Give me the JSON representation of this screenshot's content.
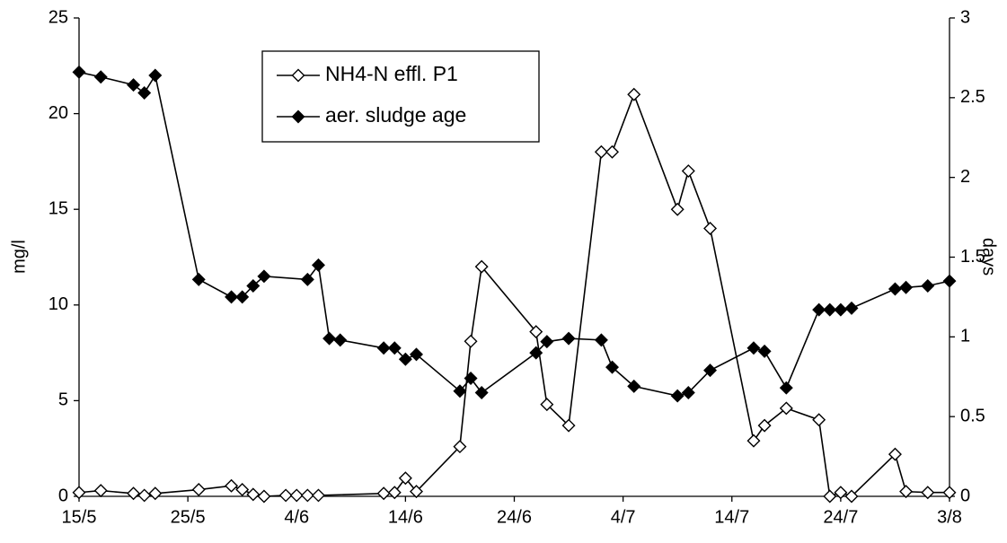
{
  "chart_data": {
    "type": "line",
    "ylabel": "mg/l",
    "y2label": "days",
    "legend": "top-left",
    "xlim": [
      "15/5",
      "3/8"
    ],
    "xticks": [
      "15/5",
      "25/5",
      "4/6",
      "14/6",
      "24/6",
      "4/7",
      "14/7",
      "24/7",
      "3/8"
    ],
    "ylim": [
      0,
      25
    ],
    "yticks": [
      0,
      5,
      10,
      15,
      20,
      25
    ],
    "y2lim": [
      0,
      3
    ],
    "y2ticks": [
      0,
      0.5,
      1,
      1.5,
      2,
      2.5,
      3
    ],
    "grid": false,
    "series": [
      {
        "name": "NH4-N effl. P1",
        "color": "#000000",
        "marker": "diamond",
        "marker_fill": "#ffffff",
        "x": [
          "15/5",
          "17/5",
          "20/5",
          "21/5",
          "22/5",
          "26/5",
          "29/5",
          "30/5",
          "31/5",
          "1/6",
          "3/6",
          "4/6",
          "5/6",
          "6/6",
          "12/6",
          "13/6",
          "14/6",
          "15/6",
          "19/6",
          "20/6",
          "21/6",
          "26/6",
          "27/6",
          "29/6",
          "2/7",
          "3/7",
          "5/7",
          "9/7",
          "10/7",
          "12/7",
          "16/7",
          "17/7",
          "19/7",
          "22/7",
          "23/7",
          "24/7",
          "25/7",
          "29/7",
          "30/7",
          "1/8",
          "3/8"
        ],
        "values": [
          0.2,
          0.3,
          0.15,
          0.05,
          0.15,
          0.35,
          0.55,
          0.35,
          0.1,
          0,
          0.05,
          0.05,
          0.05,
          0.05,
          0.15,
          0.2,
          0.95,
          0.25,
          2.6,
          8.1,
          12,
          8.6,
          4.8,
          3.7,
          18,
          18,
          21,
          15,
          17,
          14,
          2.9,
          3.7,
          4.6,
          4.0,
          0,
          0.2,
          0,
          2.2,
          0.25,
          0.2,
          0.2
        ]
      },
      {
        "name": "aer. sludge age",
        "color": "#000000",
        "marker": "diamond",
        "marker_fill": "#000000",
        "axis": "y2",
        "x": [
          "15/5",
          "17/5",
          "20/5",
          "21/5",
          "22/5",
          "26/5",
          "29/5",
          "30/5",
          "31/5",
          "1/6",
          "5/6",
          "6/6",
          "7/6",
          "8/6",
          "12/6",
          "13/6",
          "14/6",
          "15/6",
          "19/6",
          "20/6",
          "21/6",
          "26/6",
          "27/6",
          "29/6",
          "2/7",
          "3/7",
          "5/7",
          "9/7",
          "10/7",
          "12/7",
          "16/7",
          "17/7",
          "19/7",
          "22/7",
          "23/7",
          "24/7",
          "25/7",
          "29/7",
          "30/7",
          "1/8",
          "3/8"
        ],
        "values": [
          2.66,
          2.63,
          2.58,
          2.53,
          2.64,
          1.36,
          1.25,
          1.25,
          1.32,
          1.38,
          1.36,
          1.45,
          0.99,
          0.98,
          0.93,
          0.93,
          0.86,
          0.89,
          0.66,
          0.74,
          0.65,
          0.9,
          0.97,
          0.99,
          0.98,
          0.81,
          0.69,
          0.63,
          0.65,
          0.79,
          0.93,
          0.91,
          0.68,
          1.17,
          1.17,
          1.17,
          1.18,
          1.3,
          1.31,
          1.32,
          1.35
        ]
      }
    ]
  }
}
